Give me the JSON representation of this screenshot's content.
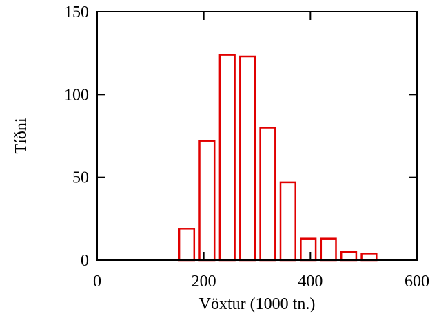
{
  "chart_data": {
    "type": "bar",
    "xlabel": "Vöxtur (1000 tn.)",
    "ylabel": "Tíðni",
    "xlim": [
      0,
      600
    ],
    "ylim": [
      0,
      150
    ],
    "x_ticks": [
      0,
      200,
      400,
      600
    ],
    "y_ticks": [
      0,
      50,
      100,
      150
    ],
    "grid": false,
    "bar_color": "#e00000",
    "bins": [
      {
        "start": 154,
        "end": 182,
        "value": 19
      },
      {
        "start": 192,
        "end": 220,
        "value": 72
      },
      {
        "start": 230,
        "end": 258,
        "value": 124
      },
      {
        "start": 268,
        "end": 296,
        "value": 123
      },
      {
        "start": 306,
        "end": 334,
        "value": 80
      },
      {
        "start": 344,
        "end": 372,
        "value": 47
      },
      {
        "start": 382,
        "end": 410,
        "value": 13
      },
      {
        "start": 420,
        "end": 448,
        "value": 13
      },
      {
        "start": 458,
        "end": 486,
        "value": 5
      },
      {
        "start": 496,
        "end": 524,
        "value": 4
      }
    ]
  }
}
